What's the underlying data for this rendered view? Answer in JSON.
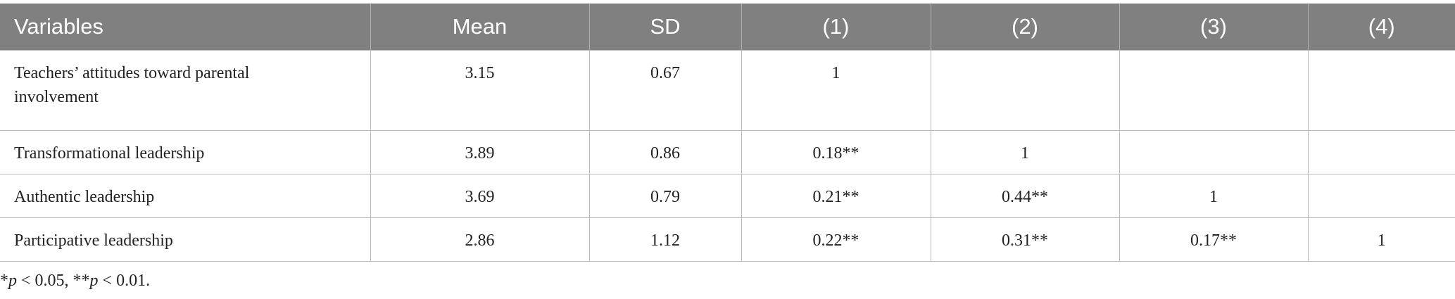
{
  "table": {
    "header": [
      "Variables",
      "Mean",
      "SD",
      "(1)",
      "(2)",
      "(3)",
      "(4)"
    ],
    "rows": [
      [
        "Teachers’ attitudes toward parental involvement",
        "3.15",
        "0.67",
        "1",
        null,
        null,
        null
      ],
      [
        "Transformational leadership",
        "3.89",
        "0.86",
        "0.18**",
        "1",
        null,
        null
      ],
      [
        "Authentic leadership",
        "3.69",
        "0.79",
        "0.21**",
        "0.44**",
        "1",
        null
      ],
      [
        "Participative leadership",
        "2.86",
        "1.12",
        "0.22**",
        "0.31**",
        "0.17**",
        "1"
      ]
    ]
  },
  "footnote": [
    "*",
    "p",
    " < 0.05, **",
    "p",
    " < 0.01."
  ]
}
